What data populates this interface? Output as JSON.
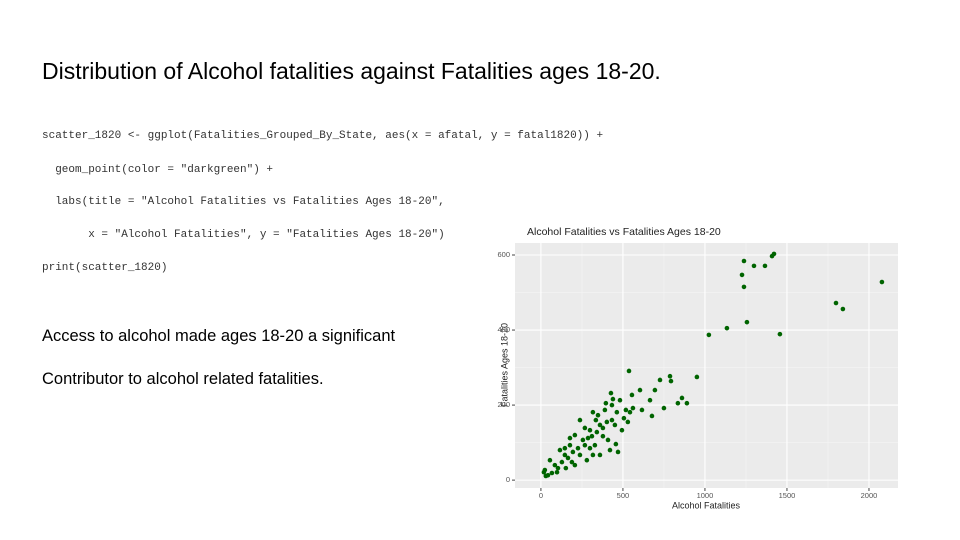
{
  "slide": {
    "heading": "Distribution of Alcohol fatalities against Fatalities ages 18-20.",
    "code": [
      "scatter_1820 <- ggplot(Fatalities_Grouped_By_State, aes(x = afatal, y = fatal1820)) +",
      "  geom_point(color = \"darkgreen\") +",
      "  labs(title = \"Alcohol Fatalities vs Fatalities Ages 18-20\",",
      "       x = \"Alcohol Fatalities\", y = \"Fatalities Ages 18-20\")",
      "print(scatter_1820)"
    ],
    "paragraphs": [
      "Access to alcohol made ages 18-20 a significant",
      "Contributor to alcohol related fatalities."
    ]
  },
  "chart_data": {
    "type": "scatter",
    "title": "Alcohol Fatalities vs Fatalities Ages 18-20",
    "x_label": "Alcohol Fatalities",
    "y_label": "Fatalities Ages 18-20",
    "grid": true,
    "xlim": [
      -158,
      2177
    ],
    "ylim": [
      -21,
      632
    ],
    "xticks": [
      0,
      500,
      1000,
      1500,
      2000
    ],
    "yticks": [
      0,
      200,
      400,
      600
    ],
    "series": [
      {
        "color": "#006400",
        "x": [
          1238,
          1299,
          1226,
          1366,
          1238,
          1409,
          1421,
          1256,
          1457,
          1134,
          1024,
          1799,
          1841,
          2079,
          951,
          787,
          793,
          726,
          537,
          695,
          604,
          665,
          860,
          890,
          835,
          677,
          750,
          427,
          439,
          482,
          518,
          543,
          390,
          348,
          360,
          451,
          409,
          457,
          494,
          238,
          299,
          207,
          268,
          177,
          329,
          360,
          116,
          146,
          55,
          85,
          24,
          43,
          67,
          104,
          128,
          165,
          195,
          226,
          256,
          287,
          311,
          341,
          378,
          402,
          433,
          378,
          421,
          470,
          317,
          280,
          189,
          152,
          98,
          30,
          18,
          238,
          207,
          299,
          177,
          146,
          268,
          335,
          317,
          396,
          463,
          506,
          561,
          616,
          555,
          433,
          530
        ],
        "y": [
          584,
          571,
          547,
          571,
          515,
          597,
          603,
          421,
          389,
          405,
          387,
          472,
          456,
          528,
          275,
          277,
          264,
          267,
          291,
          240,
          240,
          213,
          219,
          205,
          205,
          171,
          192,
          232,
          216,
          213,
          187,
          181,
          187,
          173,
          147,
          147,
          107,
          96,
          133,
          160,
          133,
          120,
          93,
          93,
          93,
          67,
          80,
          67,
          53,
          40,
          27,
          13,
          19,
          32,
          48,
          59,
          75,
          85,
          107,
          112,
          117,
          128,
          139,
          155,
          160,
          117,
          80,
          75,
          67,
          53,
          48,
          32,
          21,
          11,
          21,
          67,
          40,
          85,
          112,
          85,
          139,
          160,
          181,
          205,
          181,
          165,
          192,
          187,
          227,
          200,
          155
        ]
      }
    ]
  }
}
